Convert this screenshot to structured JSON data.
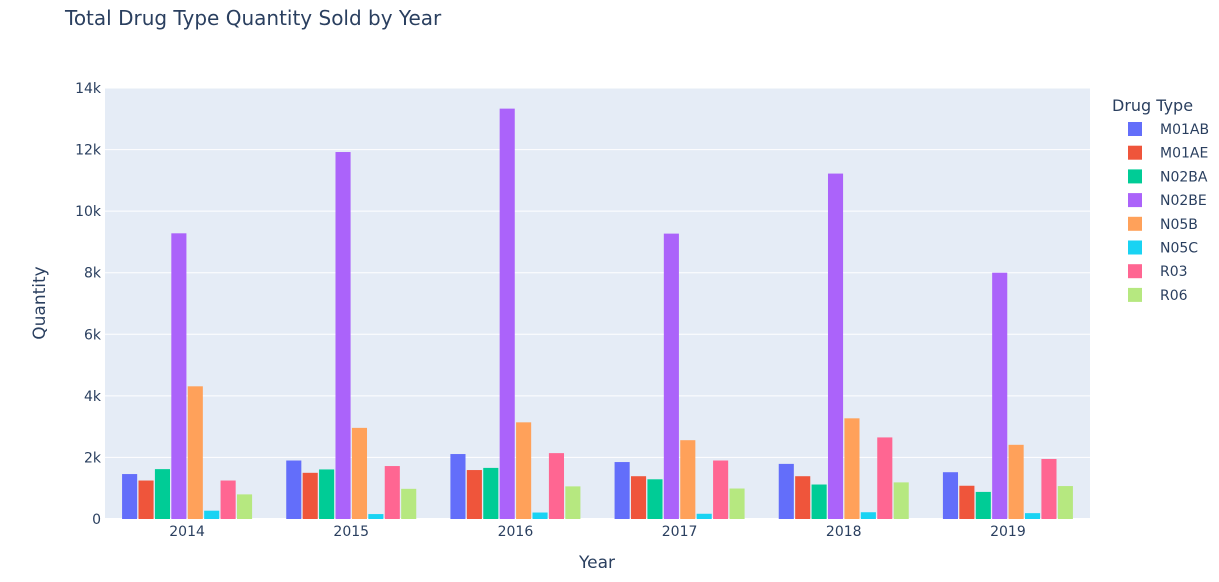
{
  "chart_data": {
    "type": "bar",
    "title": "Total Drug Type Quantity Sold by Year",
    "xlabel": "Year",
    "ylabel": "Quantity",
    "ylim": [
      0,
      14000
    ],
    "y_ticks": [
      {
        "value": 0,
        "label": "0"
      },
      {
        "value": 2000,
        "label": "2k"
      },
      {
        "value": 4000,
        "label": "4k"
      },
      {
        "value": 6000,
        "label": "6k"
      },
      {
        "value": 8000,
        "label": "8k"
      },
      {
        "value": 10000,
        "label": "10k"
      },
      {
        "value": 12000,
        "label": "12k"
      },
      {
        "value": 14000,
        "label": "14k"
      }
    ],
    "categories": [
      "2014",
      "2015",
      "2016",
      "2017",
      "2018",
      "2019"
    ],
    "legend_title": "Drug Type",
    "legend_position": "right",
    "grid": true,
    "plot_background": "#e5ecf6",
    "series": [
      {
        "name": "M01AB",
        "color": "#636efa",
        "values": [
          1460,
          1900,
          2110,
          1850,
          1790,
          1520
        ]
      },
      {
        "name": "M01AE",
        "color": "#ef553b",
        "values": [
          1250,
          1500,
          1590,
          1390,
          1390,
          1080
        ]
      },
      {
        "name": "N02BA",
        "color": "#00cc96",
        "values": [
          1620,
          1610,
          1660,
          1290,
          1120,
          880
        ]
      },
      {
        "name": "N02BE",
        "color": "#ab63fa",
        "values": [
          9280,
          11920,
          13330,
          9270,
          11220,
          8000
        ]
      },
      {
        "name": "N05B",
        "color": "#ffa15a",
        "values": [
          4310,
          2960,
          3140,
          2560,
          3270,
          2410
        ]
      },
      {
        "name": "N05C",
        "color": "#19d3f3",
        "values": [
          270,
          160,
          210,
          170,
          220,
          190
        ]
      },
      {
        "name": "R03",
        "color": "#ff6692",
        "values": [
          1250,
          1720,
          2140,
          1900,
          2650,
          1950
        ]
      },
      {
        "name": "R06",
        "color": "#b6e880",
        "values": [
          800,
          980,
          1060,
          990,
          1190,
          1070
        ]
      }
    ]
  }
}
